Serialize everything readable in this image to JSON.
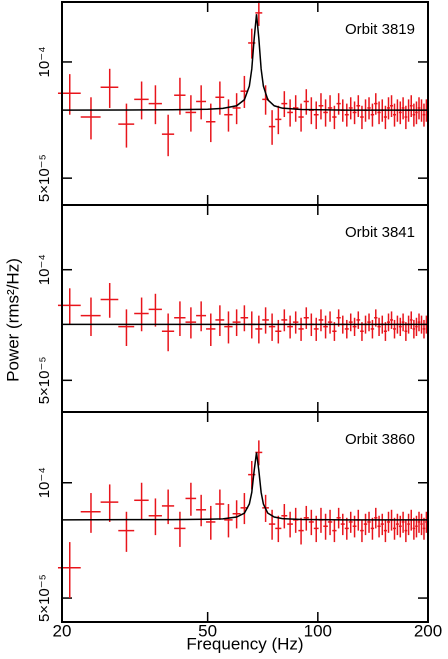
{
  "chart_data": [
    {
      "type": "errorstep",
      "annotation": "Orbit 3819",
      "x": [
        21,
        24,
        27,
        30,
        33,
        36,
        39,
        42,
        45,
        48,
        51,
        54,
        57,
        60,
        63,
        66,
        69,
        72,
        75,
        78,
        81,
        84,
        87,
        90,
        93,
        96,
        99,
        102,
        105,
        108,
        111,
        114,
        117,
        120,
        123,
        126,
        129,
        132,
        135,
        138,
        141,
        144,
        147,
        150,
        153,
        156,
        159,
        162,
        165,
        168,
        171,
        174,
        177,
        180,
        183,
        186,
        189,
        192,
        195,
        198
      ],
      "series": [
        {
          "color": "#e8141b",
          "values": [
            8.3e-05,
            7.2e-05,
            8.6e-05,
            6.9e-05,
            8e-05,
            7.8e-05,
            6.5e-05,
            8.2e-05,
            7.4e-05,
            7.9e-05,
            7e-05,
            8.1e-05,
            7.3e-05,
            7.6e-05,
            8.4e-05,
            0.000112,
            0.000134,
            8e-05,
            6.8e-05,
            7.1e-05,
            7.8e-05,
            7.4e-05,
            7.6e-05,
            7.2e-05,
            7.9e-05,
            7.5e-05,
            7.3e-05,
            7.7e-05,
            7.4e-05,
            7.6e-05,
            7.2e-05,
            7.8e-05,
            7.5e-05,
            7.3e-05,
            7.6e-05,
            7.4e-05,
            7.7e-05,
            7.2e-05,
            7.5e-05,
            7.6e-05,
            7.3e-05,
            7.8e-05,
            7.4e-05,
            7.5e-05,
            7.2e-05,
            7.6e-05,
            7.7e-05,
            7.3e-05,
            7.5e-05,
            7.4e-05,
            7.6e-05,
            7.2e-05,
            7.5e-05,
            7.7e-05,
            7.3e-05,
            7.4e-05,
            7.6e-05,
            7.5e-05,
            7.3e-05,
            7.5e-05
          ],
          "errors": [
            1e-05,
            9e-06,
            1e-05,
            9e-06,
            9e-06,
            9e-06,
            8e-06,
            9e-06,
            8e-06,
            8e-06,
            8e-06,
            8e-06,
            7e-06,
            7e-06,
            8e-06,
            1e-05,
            1e-05,
            7e-06,
            7e-06,
            6e-06,
            6e-06,
            6e-06,
            6e-06,
            6e-06,
            6e-06,
            6e-06,
            6e-06,
            6e-06,
            6e-06,
            6e-06,
            5e-06,
            5e-06,
            5e-06,
            5e-06,
            5e-06,
            5e-06,
            5e-06,
            5e-06,
            5e-06,
            5e-06,
            5e-06,
            5e-06,
            5e-06,
            5e-06,
            5e-06,
            5e-06,
            5e-06,
            5e-06,
            5e-06,
            5e-06,
            5e-06,
            5e-06,
            5e-06,
            5e-06,
            5e-06,
            5e-06,
            5e-06,
            5e-06,
            5e-06,
            5e-06
          ]
        }
      ],
      "model": {
        "color": "#000000",
        "x": [
          20,
          30,
          40,
          50,
          55,
          60,
          63,
          65,
          66,
          67,
          68,
          69,
          70,
          71,
          73,
          76,
          80,
          90,
          120,
          200
        ],
        "values": [
          7.5e-05,
          7.51e-05,
          7.52e-05,
          7.54e-05,
          7.58e-05,
          7.7e-05,
          7.98e-05,
          8.66e-05,
          9.59e-05,
          0.000115,
          0.000133,
          0.000115,
          9.59e-05,
          8.66e-05,
          7.98e-05,
          7.7e-05,
          7.59e-05,
          7.53e-05,
          7.5e-05,
          7.5e-05
        ]
      },
      "ylim": [
        4.26e-05,
        0.000143
      ],
      "log_y": true,
      "yticks": [
        {
          "value": 0.0001,
          "label": "10⁻⁴"
        },
        {
          "value": 5e-05,
          "label": "5×10⁻⁵"
        }
      ]
    },
    {
      "type": "errorstep",
      "annotation": "Orbit 3841",
      "ylabel": "Power (rms²/Hz)",
      "x": [
        21,
        24,
        27,
        30,
        33,
        36,
        39,
        42,
        45,
        48,
        51,
        54,
        57,
        60,
        63,
        66,
        69,
        72,
        75,
        78,
        81,
        84,
        87,
        90,
        93,
        96,
        99,
        102,
        105,
        108,
        111,
        114,
        117,
        120,
        123,
        126,
        129,
        132,
        135,
        138,
        141,
        144,
        147,
        150,
        153,
        156,
        159,
        162,
        165,
        168,
        171,
        174,
        177,
        180,
        183,
        186,
        189,
        192,
        195,
        198
      ],
      "series": [
        {
          "color": "#e8141b",
          "values": [
            8e-05,
            7.5e-05,
            8.3e-05,
            7e-05,
            7.6e-05,
            7.8e-05,
            6.8e-05,
            7.4e-05,
            7.2e-05,
            7.5e-05,
            6.9e-05,
            7.3e-05,
            7e-05,
            7.2e-05,
            7.4e-05,
            7.1e-05,
            6.9e-05,
            7.3e-05,
            7e-05,
            6.8e-05,
            7.3e-05,
            7e-05,
            7.2e-05,
            6.9e-05,
            7.4e-05,
            7.1e-05,
            6.9e-05,
            7.3e-05,
            7e-05,
            7.2e-05,
            6.8e-05,
            7.4e-05,
            7.1e-05,
            6.9e-05,
            7.2e-05,
            7e-05,
            7.3e-05,
            6.8e-05,
            7.1e-05,
            7.2e-05,
            6.9e-05,
            7.4e-05,
            7e-05,
            7.1e-05,
            6.8e-05,
            7.2e-05,
            7.3e-05,
            6.9e-05,
            7.1e-05,
            7e-05,
            7.2e-05,
            6.8e-05,
            7.1e-05,
            7.3e-05,
            6.9e-05,
            7e-05,
            7.2e-05,
            7.1e-05,
            6.9e-05,
            7.1e-05
          ],
          "errors": [
            9e-06,
            9e-06,
            9e-06,
            8e-06,
            8e-06,
            8e-06,
            8e-06,
            8e-06,
            7e-06,
            7e-06,
            7e-06,
            7e-06,
            7e-06,
            6e-06,
            6e-06,
            6e-06,
            6e-06,
            6e-06,
            6e-06,
            5e-06,
            5e-06,
            5e-06,
            5e-06,
            5e-06,
            5e-06,
            5e-06,
            5e-06,
            5e-06,
            5e-06,
            5e-06,
            4e-06,
            4e-06,
            4e-06,
            4e-06,
            4e-06,
            4e-06,
            4e-06,
            4e-06,
            4e-06,
            4e-06,
            4e-06,
            4e-06,
            4e-06,
            4e-06,
            4e-06,
            4e-06,
            4e-06,
            4e-06,
            4e-06,
            4e-06,
            4e-06,
            4e-06,
            4e-06,
            4e-06,
            4e-06,
            4e-06,
            4e-06,
            4e-06,
            4e-06,
            4e-06
          ]
        }
      ],
      "model": {
        "color": "#000000",
        "x": [
          20,
          200
        ],
        "values": [
          7.1e-05,
          7.1e-05
        ]
      },
      "ylim": [
        4.1e-05,
        0.00015
      ],
      "log_y": true,
      "yticks": [
        {
          "value": 0.0001,
          "label": "10⁻⁴"
        },
        {
          "value": 5e-05,
          "label": "5×10⁻⁵"
        }
      ]
    },
    {
      "type": "errorstep",
      "annotation": "Orbit 3860",
      "xlabel": "Frequency (Hz)",
      "x": [
        21,
        24,
        27,
        30,
        33,
        36,
        39,
        42,
        45,
        48,
        51,
        54,
        57,
        60,
        63,
        66,
        69,
        72,
        75,
        78,
        81,
        84,
        87,
        90,
        93,
        96,
        99,
        102,
        105,
        108,
        111,
        114,
        117,
        120,
        123,
        126,
        129,
        132,
        135,
        138,
        141,
        144,
        147,
        150,
        153,
        156,
        159,
        162,
        165,
        168,
        171,
        174,
        177,
        180,
        183,
        186,
        189,
        192,
        195,
        198
      ],
      "series": [
        {
          "color": "#e8141b",
          "values": [
            6e-05,
            8.4e-05,
            8.9e-05,
            7.5e-05,
            9e-05,
            8.2e-05,
            8.7e-05,
            7.6e-05,
            9.1e-05,
            8.5e-05,
            7.9e-05,
            8.8e-05,
            8e-05,
            8.3e-05,
            8.6e-05,
            0.000105,
            0.00012,
            8.6e-05,
            7.8e-05,
            7.6e-05,
            8.2e-05,
            7.8e-05,
            8e-05,
            7.5e-05,
            8.1e-05,
            7.9e-05,
            7.6e-05,
            8e-05,
            7.7e-05,
            7.9e-05,
            7.5e-05,
            8.1e-05,
            7.8e-05,
            7.6e-05,
            7.9e-05,
            7.7e-05,
            8e-05,
            7.5e-05,
            7.8e-05,
            7.9e-05,
            7.6e-05,
            8.1e-05,
            7.7e-05,
            7.8e-05,
            7.5e-05,
            7.9e-05,
            8e-05,
            7.6e-05,
            7.8e-05,
            7.7e-05,
            7.9e-05,
            7.5e-05,
            7.8e-05,
            8e-05,
            7.6e-05,
            7.7e-05,
            7.9e-05,
            7.8e-05,
            7.6e-05,
            7.9e-05
          ],
          "errors": [
            1e-05,
            1e-05,
            1e-05,
            9e-06,
            1e-05,
            9e-06,
            9e-06,
            8e-06,
            9e-06,
            8e-06,
            8e-06,
            8e-06,
            8e-06,
            7e-06,
            8e-06,
            9e-06,
            9e-06,
            7e-06,
            7e-06,
            6e-06,
            6e-06,
            6e-06,
            6e-06,
            6e-06,
            6e-06,
            6e-06,
            6e-06,
            6e-06,
            6e-06,
            6e-06,
            5e-06,
            5e-06,
            5e-06,
            5e-06,
            5e-06,
            5e-06,
            5e-06,
            5e-06,
            5e-06,
            5e-06,
            5e-06,
            5e-06,
            5e-06,
            5e-06,
            5e-06,
            5e-06,
            5e-06,
            5e-06,
            5e-06,
            5e-06,
            5e-06,
            5e-06,
            5e-06,
            5e-06,
            5e-06,
            5e-06,
            5e-06,
            5e-06,
            5e-06,
            5e-06
          ]
        }
      ],
      "model": {
        "color": "#000000",
        "x": [
          20,
          30,
          40,
          50,
          55,
          60,
          63,
          65,
          66,
          67,
          68,
          69,
          70,
          71,
          73,
          76,
          80,
          90,
          120,
          200
        ],
        "values": [
          8e-05,
          8.01e-05,
          8.01e-05,
          8.03e-05,
          8.05e-05,
          8.14e-05,
          8.33e-05,
          8.8e-05,
          9.44e-05,
          0.0001076,
          0.00012,
          0.0001076,
          9.44e-05,
          8.8e-05,
          8.33e-05,
          8.14e-05,
          8.06e-05,
          8.02e-05,
          8e-05,
          8e-05
        ]
      },
      "ylim": [
        4.33e-05,
        0.000153
      ],
      "log_y": true,
      "log_x": true,
      "yticks": [
        {
          "value": 0.0001,
          "label": "10⁻⁴"
        },
        {
          "value": 5e-05,
          "label": "5×10⁻⁵"
        }
      ],
      "xlim": [
        20,
        200
      ],
      "xticks": [
        20,
        50,
        100,
        200
      ]
    }
  ]
}
